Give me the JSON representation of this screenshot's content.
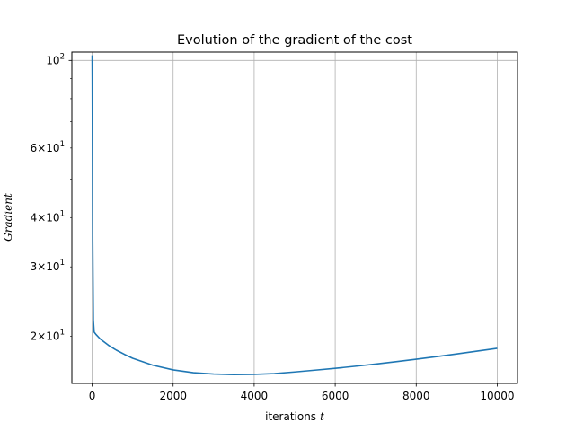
{
  "chart_data": {
    "type": "line",
    "title": "Evolution of the gradient of the cost",
    "xlabel": "iterations",
    "xlabel_var": "t",
    "ylabel": "Gradient",
    "yscale": "log",
    "xlim": [
      -500,
      10500
    ],
    "ylim": [
      15.2,
      105
    ],
    "grid": true,
    "xticks": [
      {
        "value": 0,
        "label": "0"
      },
      {
        "value": 2000,
        "label": "2000"
      },
      {
        "value": 4000,
        "label": "4000"
      },
      {
        "value": 6000,
        "label": "6000"
      },
      {
        "value": 8000,
        "label": "8000"
      },
      {
        "value": 10000,
        "label": "10000"
      }
    ],
    "yticks_major": [
      {
        "value": 100,
        "base": "10",
        "exp": "2"
      }
    ],
    "yticks_minor": [
      {
        "value": 20,
        "mant": "2",
        "base": "10",
        "exp": "1"
      },
      {
        "value": 30,
        "mant": "3",
        "base": "10",
        "exp": "1"
      },
      {
        "value": 40,
        "mant": "4",
        "base": "10",
        "exp": "1"
      },
      {
        "value": 60,
        "mant": "6",
        "base": "10",
        "exp": "1"
      }
    ],
    "yticks_minor_unlabeled": [
      50,
      70,
      80,
      90
    ],
    "series": [
      {
        "color": "#1f77b4",
        "x": [
          0,
          3,
          8,
          15,
          30,
          50,
          100,
          200,
          400,
          600,
          800,
          1000,
          1500,
          2000,
          2500,
          3000,
          3500,
          4000,
          4500,
          5000,
          5500,
          6000,
          6500,
          7000,
          7500,
          8000,
          8500,
          9000,
          9500,
          10000
        ],
        "y": [
          103,
          90,
          60,
          35,
          22,
          20.5,
          20.2,
          19.7,
          19.0,
          18.45,
          18.0,
          17.6,
          16.9,
          16.45,
          16.18,
          16.05,
          16.0,
          16.02,
          16.1,
          16.25,
          16.42,
          16.6,
          16.8,
          17.02,
          17.25,
          17.5,
          17.77,
          18.05,
          18.35,
          18.65
        ]
      }
    ]
  }
}
